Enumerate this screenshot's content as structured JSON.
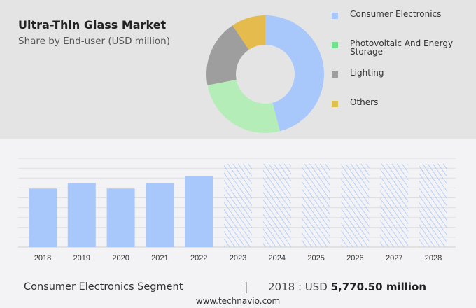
{
  "header": {
    "title": "Ultra-Thin Glass Market",
    "subtitle": "Share by End-user (USD million)"
  },
  "chart_data": [
    {
      "type": "pie",
      "style": "donut",
      "categories": [
        "Consumer Electronics",
        "Photovoltaic And Energy Storage",
        "Lighting",
        "Others"
      ],
      "values": [
        46,
        26,
        18.6,
        9.4
      ],
      "colors": [
        "#a8c8fc",
        "#b5edb9",
        "#9e9e9e",
        "#e4bb4c"
      ],
      "legend_colors": [
        "#a8c8fc",
        "#74e08f",
        "#9e9e9e",
        "#e0c04c"
      ],
      "legend_placement": "right"
    },
    {
      "type": "bar",
      "categories": [
        "2018",
        "2019",
        "2020",
        "2021",
        "2022",
        "2023",
        "2024",
        "2025",
        "2026",
        "2027",
        "2028"
      ],
      "values": [
        5770.5,
        6330,
        5770.5,
        6330,
        6970,
        null,
        null,
        null,
        null,
        null,
        null
      ],
      "forecast_years": [
        "2023",
        "2024",
        "2025",
        "2026",
        "2027",
        "2028"
      ],
      "bar_color": "#a8c8fc",
      "grid": true,
      "ylim": [
        0,
        8750
      ]
    }
  ],
  "footer": {
    "segment": "Consumer Electronics Segment",
    "separator": "|",
    "value_prefix": "2018 : USD ",
    "value": "5,770.50 million",
    "url": "www.technavio.com"
  }
}
